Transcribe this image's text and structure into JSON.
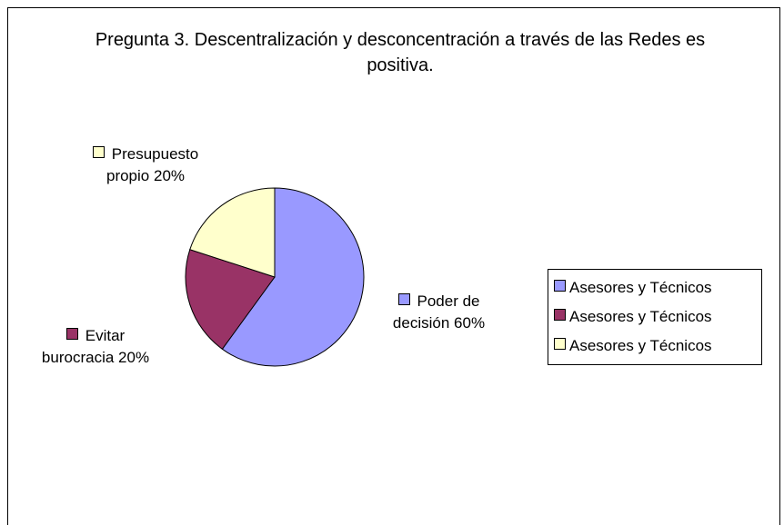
{
  "chart_data": {
    "type": "pie",
    "title": "Pregunta 3. Descentralización y desconcentración a través de las Redes es positiva.",
    "categories": [
      "Poder de decisión",
      "Evitar burocracia",
      "Presupuesto propio"
    ],
    "values": [
      60,
      20,
      20
    ],
    "value_labels": [
      "60%",
      "20%",
      "20%"
    ],
    "colors": [
      "#9999ff",
      "#993366",
      "#ffffcc"
    ],
    "legend": [
      "Asesores y Técnicos",
      "Asesores y Técnicos",
      "Asesores y Técnicos"
    ],
    "legend_position": "right"
  }
}
